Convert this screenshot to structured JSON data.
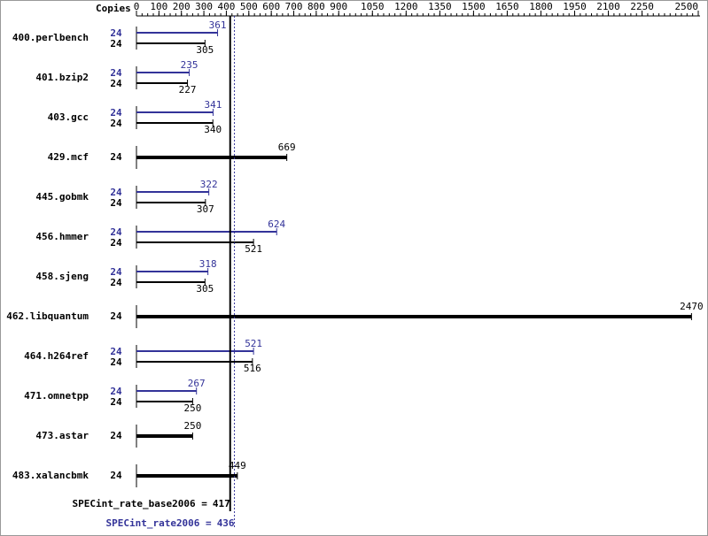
{
  "chart_data": {
    "type": "spec-bar",
    "copies_label": "Copies",
    "categories": [
      "400.perlbench",
      "401.bzip2",
      "403.gcc",
      "429.mcf",
      "445.gobmk",
      "456.hmmer",
      "458.sjeng",
      "462.libquantum",
      "464.h264ref",
      "471.omnetpp",
      "473.astar",
      "483.xalancbmk"
    ],
    "series": [
      {
        "name": "SPECint_rate2006",
        "color": "#333399",
        "copies": [
          24,
          24,
          24,
          null,
          24,
          24,
          24,
          null,
          24,
          24,
          null,
          null
        ],
        "values": [
          361,
          235,
          341,
          null,
          322,
          624,
          318,
          null,
          521,
          267,
          null,
          null
        ]
      },
      {
        "name": "SPECint_rate_base2006",
        "color": "#000000",
        "copies": [
          24,
          24,
          24,
          24,
          24,
          24,
          24,
          24,
          24,
          24,
          24,
          24
        ],
        "values": [
          305,
          227,
          340,
          669,
          307,
          521,
          305,
          2470,
          516,
          250,
          250,
          449
        ]
      }
    ],
    "base_mean_label": "SPECint_rate_base2006 =",
    "base_mean": 417,
    "peak_mean_label": "SPECint_rate2006 =",
    "peak_mean": 436,
    "xlim": [
      0,
      2500
    ],
    "xticks": [
      0,
      100,
      200,
      300,
      400,
      500,
      600,
      700,
      800,
      900,
      1050,
      1200,
      1350,
      1500,
      1650,
      1800,
      1950,
      2100,
      2250,
      2500
    ]
  }
}
